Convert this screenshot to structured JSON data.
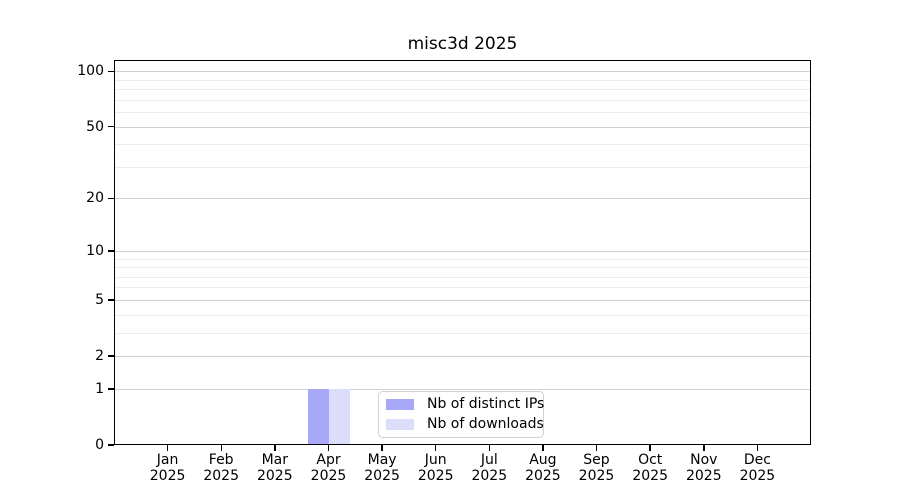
{
  "title": "misc3d 2025",
  "chart_data": {
    "type": "bar",
    "title": "misc3d 2025",
    "grid": true,
    "x_categories": [
      {
        "month": "Jan",
        "year": "2025"
      },
      {
        "month": "Feb",
        "year": "2025"
      },
      {
        "month": "Mar",
        "year": "2025"
      },
      {
        "month": "Apr",
        "year": "2025"
      },
      {
        "month": "May",
        "year": "2025"
      },
      {
        "month": "Jun",
        "year": "2025"
      },
      {
        "month": "Jul",
        "year": "2025"
      },
      {
        "month": "Aug",
        "year": "2025"
      },
      {
        "month": "Sep",
        "year": "2025"
      },
      {
        "month": "Oct",
        "year": "2025"
      },
      {
        "month": "Nov",
        "year": "2025"
      },
      {
        "month": "Dec",
        "year": "2025"
      }
    ],
    "series": [
      {
        "name": "Nb of distinct IPs",
        "color": "#a8a8f8",
        "values": [
          0,
          0,
          0,
          1,
          0,
          0,
          0,
          0,
          0,
          0,
          0,
          0
        ]
      },
      {
        "name": "Nb of downloads",
        "color": "#dcdcfb",
        "values": [
          0,
          0,
          0,
          1,
          0,
          0,
          0,
          0,
          0,
          0,
          0,
          0
        ]
      }
    ],
    "y_axis": {
      "scale": "log1p",
      "min": 0,
      "max": 115,
      "tick_labels": [
        0,
        1,
        2,
        5,
        10,
        20,
        50,
        100
      ],
      "minor_gridlines": [
        3,
        4,
        6,
        7,
        8,
        9,
        30,
        40,
        60,
        70,
        80,
        90
      ]
    },
    "legend": {
      "position": "lower center"
    }
  }
}
